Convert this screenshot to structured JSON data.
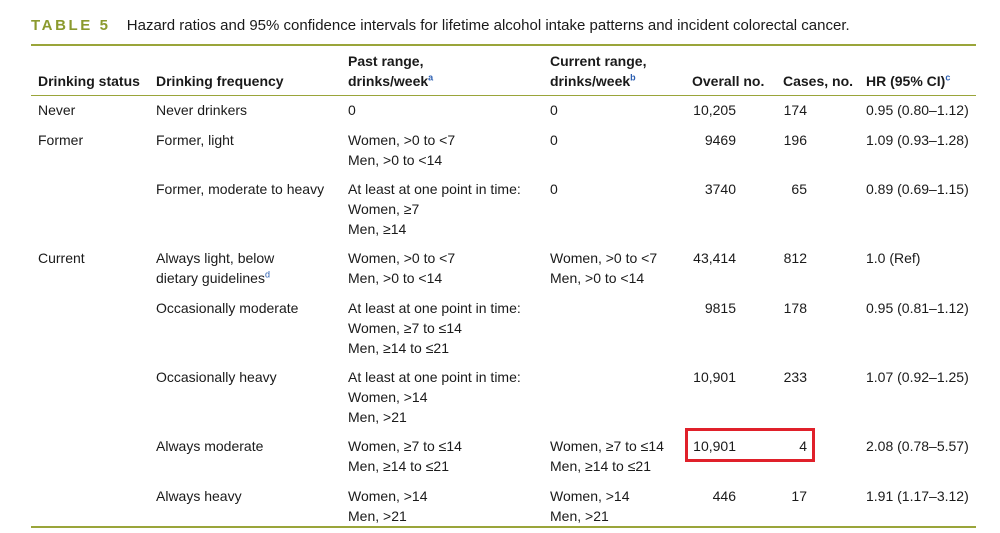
{
  "caption": {
    "label": "TABLE 5",
    "text": "Hazard ratios and 95% confidence intervals for lifetime alcohol intake patterns and incident colorectal cancer."
  },
  "headers": {
    "status": "Drinking status",
    "frequency": "Drinking frequency",
    "past_line1": "Past range,",
    "past_line2": "drinks/week",
    "past_sup": "a",
    "current_line1": "Current range,",
    "current_line2": "drinks/week",
    "current_sup": "b",
    "overall": "Overall no.",
    "cases": "Cases, no.",
    "hr": "HR (95% CI)",
    "hr_sup": "c"
  },
  "rows": [
    {
      "status": "Never",
      "frequency": [
        "Never drinkers"
      ],
      "past": [
        "0"
      ],
      "current": [
        "0"
      ],
      "overall": "10,205",
      "cases": "174",
      "hr": "0.95 (0.80–1.12)"
    },
    {
      "status": "Former",
      "frequency": [
        "Former, light"
      ],
      "past": [
        "Women, >0 to <7",
        "Men, >0 to <14"
      ],
      "current": [
        "0"
      ],
      "overall": "9469",
      "cases": "196",
      "hr": "1.09 (0.93–1.28)"
    },
    {
      "status": "",
      "frequency": [
        "Former, moderate to heavy"
      ],
      "past": [
        "At least at one point in time:",
        "Women, ≥7",
        "Men, ≥14"
      ],
      "current": [
        "0"
      ],
      "overall": "3740",
      "cases": "65",
      "hr": "0.89 (0.69–1.15)"
    },
    {
      "status": "Current",
      "frequency": [
        "Always light, below",
        "dietary guidelines"
      ],
      "frequency_sup": "d",
      "past": [
        "Women, >0 to <7",
        "Men, >0 to <14"
      ],
      "current": [
        "Women, >0 to <7",
        "Men, >0 to <14"
      ],
      "overall": "43,414",
      "cases": "812",
      "hr": "1.0 (Ref)"
    },
    {
      "status": "",
      "frequency": [
        "Occasionally moderate"
      ],
      "past": [
        "At least at one point in time:",
        "Women, ≥7 to ≤14",
        "Men, ≥14 to ≤21"
      ],
      "current": [],
      "overall": "9815",
      "cases": "178",
      "hr": "0.95 (0.81–1.12)"
    },
    {
      "status": "",
      "frequency": [
        "Occasionally heavy"
      ],
      "past": [
        "At least at one point in time:",
        "Women, >14",
        "Men, >21"
      ],
      "current": [],
      "overall": "10,901",
      "cases": "233",
      "hr": "1.07 (0.92–1.25)"
    },
    {
      "status": "",
      "frequency": [
        "Always moderate"
      ],
      "past": [
        "Women, ≥7 to ≤14",
        "Men, ≥14 to ≤21"
      ],
      "current": [
        "Women, ≥7 to ≤14",
        "Men, ≥14 to ≤21"
      ],
      "overall": "10,901",
      "cases": "4",
      "hr": "2.08 (0.78–5.57)"
    },
    {
      "status": "",
      "frequency": [
        "Always heavy"
      ],
      "past": [
        "Women, >14",
        "Men, >21"
      ],
      "current": [
        "Women, >14",
        "Men, >21"
      ],
      "overall": "446",
      "cases": "17",
      "hr": "1.91 (1.17–3.12)"
    }
  ],
  "colors": {
    "accent": "#9aa53a",
    "label": "#8b9a2e",
    "highlight": "#e0202a",
    "footnote": "#2a5db0"
  }
}
